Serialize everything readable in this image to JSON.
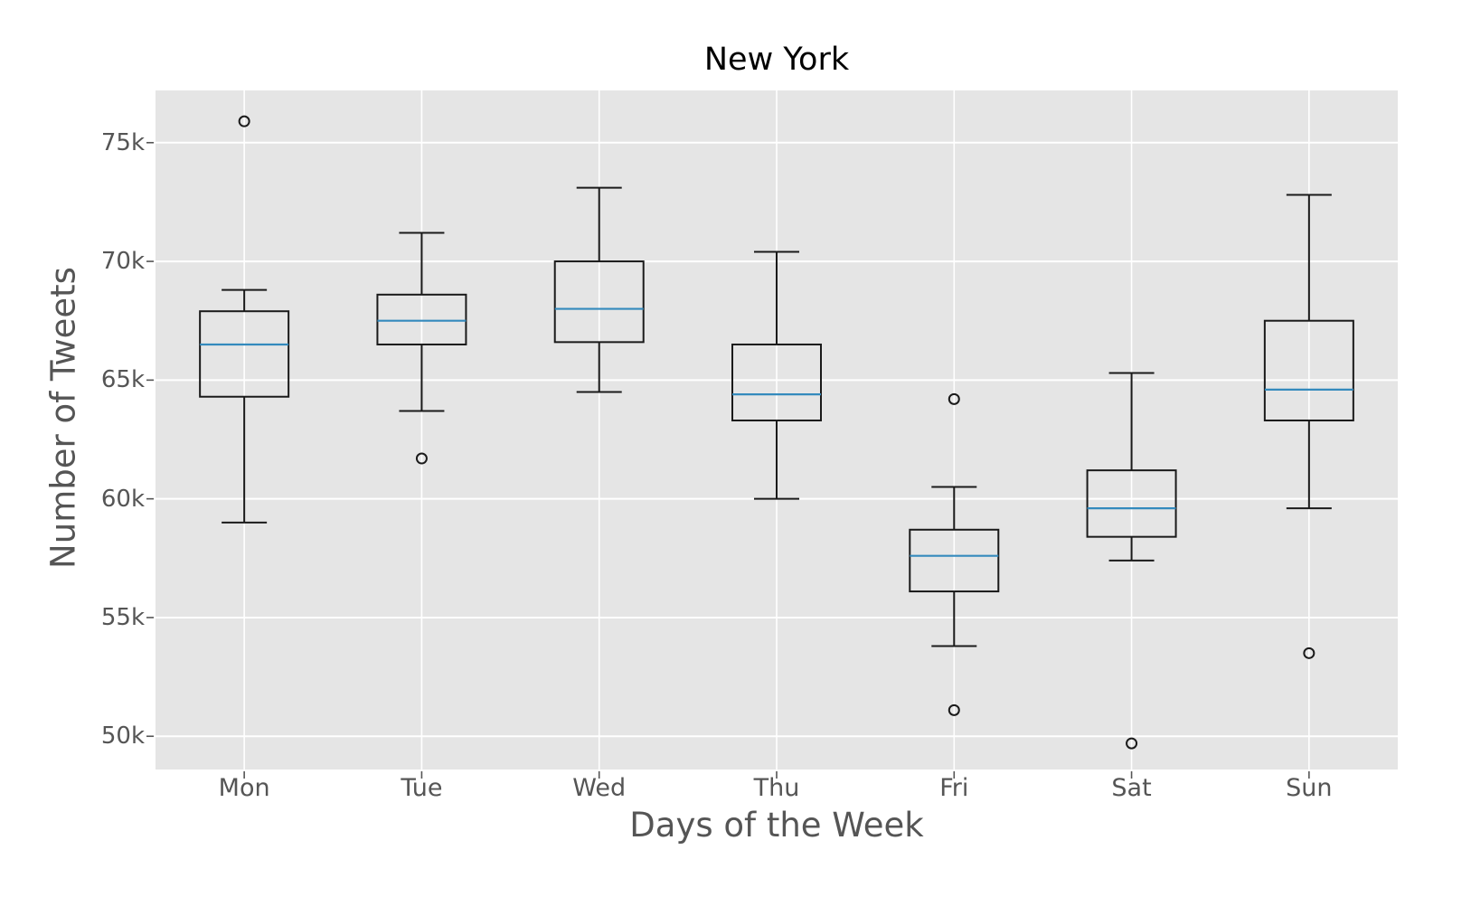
{
  "chart_data": {
    "type": "boxplot",
    "title": "New York",
    "xlabel": "Days of the Week",
    "ylabel": "Number of Tweets",
    "categories": [
      "Mon",
      "Tue",
      "Wed",
      "Thu",
      "Fri",
      "Sat",
      "Sun"
    ],
    "values_unit": "thousands of tweets",
    "ylim": [
      48.6,
      77.2
    ],
    "yticks": [
      {
        "value": 50,
        "label": "50k"
      },
      {
        "value": 55,
        "label": "55k"
      },
      {
        "value": 60,
        "label": "60k"
      },
      {
        "value": 65,
        "label": "65k"
      },
      {
        "value": 70,
        "label": "70k"
      },
      {
        "value": 75,
        "label": "75k"
      }
    ],
    "grid": true,
    "legend": false,
    "boxes": [
      {
        "category": "Mon",
        "whisker_low": 59.0,
        "q1": 64.3,
        "median": 66.5,
        "q3": 67.9,
        "whisker_high": 68.8,
        "outliers": [
          75.9
        ]
      },
      {
        "category": "Tue",
        "whisker_low": 63.7,
        "q1": 66.5,
        "median": 67.5,
        "q3": 68.6,
        "whisker_high": 71.2,
        "outliers": [
          61.7
        ]
      },
      {
        "category": "Wed",
        "whisker_low": 64.5,
        "q1": 66.6,
        "median": 68.0,
        "q3": 70.0,
        "whisker_high": 73.1,
        "outliers": []
      },
      {
        "category": "Thu",
        "whisker_low": 60.0,
        "q1": 63.3,
        "median": 64.4,
        "q3": 66.5,
        "whisker_high": 70.4,
        "outliers": []
      },
      {
        "category": "Fri",
        "whisker_low": 53.8,
        "q1": 56.1,
        "median": 57.6,
        "q3": 58.7,
        "whisker_high": 60.5,
        "outliers": [
          64.2,
          51.1
        ]
      },
      {
        "category": "Sat",
        "whisker_low": 57.4,
        "q1": 58.4,
        "median": 59.6,
        "q3": 61.2,
        "whisker_high": 65.3,
        "outliers": [
          49.7
        ]
      },
      {
        "category": "Sun",
        "whisker_low": 59.6,
        "q1": 63.3,
        "median": 64.6,
        "q3": 67.5,
        "whisker_high": 72.8,
        "outliers": [
          53.5
        ]
      }
    ]
  },
  "style": {
    "figure_bg": "#ffffff",
    "plot_bg": "#e5e5e5",
    "grid_color": "#ffffff",
    "box_color": "#1a1a1a",
    "median_color": "#348abd",
    "text_color": "#555555",
    "title_color": "#000000"
  }
}
